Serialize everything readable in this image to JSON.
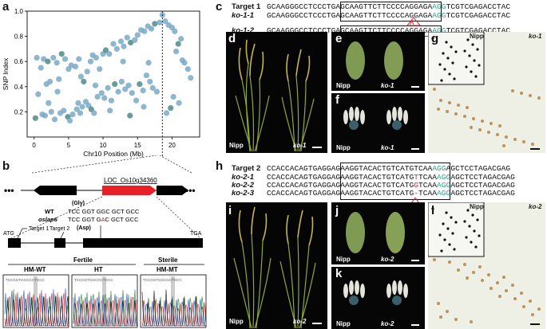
{
  "panel_labels": {
    "a": "a",
    "b": "b",
    "c": "c",
    "d": "d",
    "e": "e",
    "f": "f",
    "g": "g",
    "h": "h",
    "i": "i",
    "j": "j",
    "k": "k",
    "l": "l"
  },
  "chart_data": {
    "type": "scatter",
    "xlabel": "Chr10 Position (Mb)",
    "ylabel": "SNP Index",
    "xlim": [
      -1,
      24
    ],
    "ylim": [
      0,
      1
    ],
    "xticks": [
      "0",
      "5",
      "10",
      "15",
      "20"
    ],
    "yticks": [
      "0.2",
      "0.4",
      "0.6",
      "0.8",
      "1.0"
    ],
    "grid": false,
    "marker_line_x": 18.6,
    "points": [
      [
        0.4,
        0.63
      ],
      [
        1.0,
        0.55
      ],
      [
        1.4,
        0.62
      ],
      [
        2.0,
        0.6
      ],
      [
        2.3,
        0.44
      ],
      [
        2.8,
        0.63
      ],
      [
        3.3,
        0.59
      ],
      [
        3.6,
        0.46
      ],
      [
        0.6,
        0.34
      ],
      [
        1.8,
        0.42
      ],
      [
        4.0,
        0.66
      ],
      [
        4.5,
        0.62
      ],
      [
        5.0,
        0.54
      ],
      [
        5.4,
        0.57
      ],
      [
        6.0,
        0.56
      ],
      [
        6.5,
        0.62
      ],
      [
        6.8,
        0.48
      ],
      [
        7.2,
        0.44
      ],
      [
        7.7,
        0.52
      ],
      [
        8.2,
        0.6
      ],
      [
        8.5,
        0.65
      ],
      [
        9.0,
        0.63
      ],
      [
        9.5,
        0.54
      ],
      [
        10.0,
        0.66
      ],
      [
        10.4,
        0.69
      ],
      [
        10.9,
        0.66
      ],
      [
        11.5,
        0.74
      ],
      [
        12.0,
        0.7
      ],
      [
        12.6,
        0.76
      ],
      [
        13.0,
        0.72
      ],
      [
        13.5,
        0.79
      ],
      [
        14.0,
        0.75
      ],
      [
        14.6,
        0.77
      ],
      [
        15.0,
        0.81
      ],
      [
        15.5,
        0.85
      ],
      [
        16.0,
        0.84
      ],
      [
        16.5,
        0.88
      ],
      [
        17.0,
        0.86
      ],
      [
        17.5,
        0.9
      ],
      [
        18.2,
        0.91
      ],
      [
        18.6,
        0.97
      ],
      [
        19.0,
        0.92
      ],
      [
        19.5,
        0.89
      ],
      [
        20.0,
        0.87
      ],
      [
        20.4,
        0.84
      ],
      [
        20.9,
        0.74
      ],
      [
        21.3,
        0.78
      ],
      [
        21.8,
        0.59
      ],
      [
        22.3,
        0.54
      ],
      [
        22.7,
        0.47
      ],
      [
        21.5,
        0.61
      ],
      [
        20.6,
        0.68
      ],
      [
        0.2,
        0.15
      ],
      [
        1.2,
        0.18
      ],
      [
        1.6,
        0.17
      ],
      [
        2.5,
        0.2
      ],
      [
        3.0,
        0.14
      ],
      [
        3.8,
        0.19
      ],
      [
        4.3,
        0.21
      ],
      [
        4.9,
        0.16
      ],
      [
        5.6,
        0.18
      ],
      [
        6.2,
        0.22
      ],
      [
        6.7,
        0.19
      ],
      [
        7.0,
        0.24
      ],
      [
        7.5,
        0.28
      ],
      [
        7.9,
        0.25
      ],
      [
        8.3,
        0.22
      ],
      [
        8.7,
        0.19
      ],
      [
        9.2,
        0.32
      ],
      [
        9.8,
        0.35
      ],
      [
        10.2,
        0.31
      ],
      [
        10.7,
        0.39
      ],
      [
        11.2,
        0.29
      ],
      [
        11.7,
        0.42
      ],
      [
        12.2,
        0.36
      ],
      [
        12.7,
        0.44
      ],
      [
        13.2,
        0.38
      ],
      [
        13.7,
        0.41
      ],
      [
        14.2,
        0.35
      ],
      [
        14.8,
        0.29
      ],
      [
        15.3,
        0.42
      ],
      [
        15.8,
        0.37
      ],
      [
        16.3,
        0.49
      ],
      [
        16.8,
        0.44
      ],
      [
        17.2,
        0.39
      ],
      [
        17.8,
        0.36
      ],
      [
        19.2,
        0.19
      ],
      [
        19.8,
        0.23
      ],
      [
        20.2,
        0.32
      ],
      [
        21.0,
        0.27
      ],
      [
        6.4,
        0.27
      ],
      [
        5.2,
        0.13
      ],
      [
        3.4,
        0.36
      ],
      [
        11.0,
        0.21
      ],
      [
        13.9,
        0.17
      ],
      [
        15.9,
        0.24
      ],
      [
        2.1,
        0.27
      ],
      [
        8.9,
        0.41
      ],
      [
        12.9,
        0.6
      ],
      [
        16.6,
        0.59
      ]
    ]
  },
  "gene": {
    "name": "LOC_Os10g34360",
    "wt": "WT",
    "mut": "oslap6",
    "wt_codons": "TCC GGT GGC GCT GCC",
    "mut_codons_pre": "TCC GGT G",
    "mut_codons_red": "A",
    "mut_codons_post": "C GCT GCC",
    "gly": "(Gly)",
    "asp": "(Asp)",
    "atg": "ATG",
    "tga": "TGA",
    "target1": "Target 1",
    "target2": "Target 2"
  },
  "genotypes": {
    "fertile": "Fertile",
    "sterile": "Sterile",
    "hm_wt": "HM-WT",
    "ht": "HT",
    "hm_mt": "HM-MT"
  },
  "seq_c": {
    "row_names": [
      "Target 1",
      "ko-1-1",
      "ko-1-2"
    ],
    "rows": [
      {
        "pre": "GCAAGGGCCTCCCTGA",
        "box": "GCAAGTTCTTCCCCAGGAGA",
        "pam": "AGG",
        "post": "TCGTCGAGACCTAC"
      },
      {
        "pre": "GCAAGGGCCTCCCTGA",
        "box": "GCAAGTTCTTCCCCAGGAGA",
        "pam": "AGG",
        "post": "TCGTCGAGACCTAC"
      },
      {
        "pre": "GCAAGGGCCTCCCTGA",
        "box": "GCAAGTTCTTCCCCAGGAGA",
        "pam": "AGG",
        "post": "TCGTCGAGACCTAC"
      }
    ],
    "insert": "A"
  },
  "seq_h": {
    "row_names": [
      "Target 2",
      "ko-2-1",
      "ko-2-2",
      "ko-2-3"
    ],
    "rows": [
      {
        "pre": "CCACCACAGTGAGGAG",
        "box": "AAGGTACACTGTCATGTCAA",
        "pam": "AGG",
        "post": "AGCTCCTAGACGAG"
      },
      {
        "pre": "CCACCACAGTGAGGAG",
        "box": "AAGGTACACTGTCATG",
        "red": "T",
        "box2": "TCAA",
        "pam": "AGG",
        "post": "AGCTCCTAGACGAG"
      },
      {
        "pre": "CCACCACAGTGAGGAG",
        "box": "AAGGTACACTGTCATG",
        "red": "G",
        "box2": "TCAA",
        "pam": "AGG",
        "post": "AGCTCCTAGACGAG"
      },
      {
        "pre": "CCACCACAGTGAGGAG",
        "box": "AAGGTACACTGTCATG",
        "red": "-",
        "box2": "TCAA",
        "pam": "AGG",
        "post": "AGCTCCTAGACGAG"
      }
    ]
  },
  "photo_labels": {
    "nipp": "Nipp",
    "ko1": "ko-1",
    "ko2": "ko-2"
  },
  "colors": {
    "point": "#7aa9c6",
    "point_dark": "#4f8a86",
    "red_gene": "#e8202a",
    "teal": "#2aa58a"
  }
}
